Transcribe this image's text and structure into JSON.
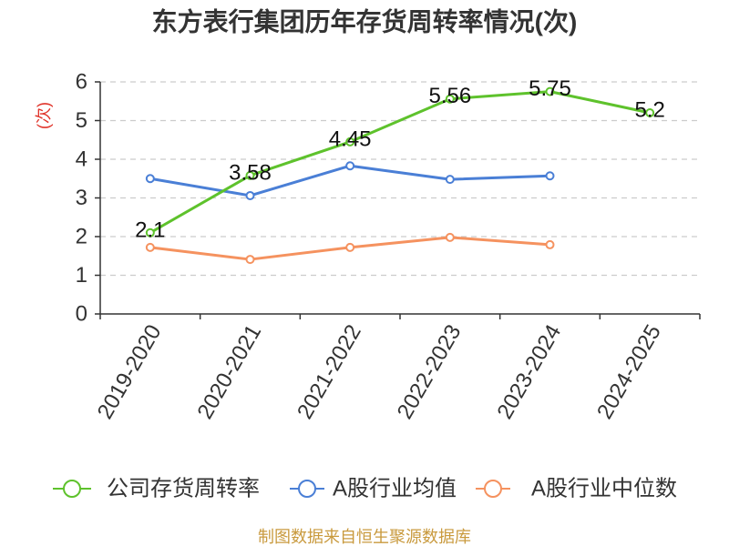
{
  "chart_data": {
    "type": "line",
    "title": "东方表行集团历年存货周转率情况(次)",
    "xlabel": "",
    "ylabel": "(次)",
    "ylim": [
      0,
      6
    ],
    "yticks": [
      0,
      1,
      2,
      3,
      4,
      5,
      6
    ],
    "grid": true,
    "legend_position": "bottom",
    "categories": [
      "2019-2020",
      "2020-2021",
      "2021-2022",
      "2022-2023",
      "2023-2024",
      "2024-2025"
    ],
    "series": [
      {
        "name": "公司存货周转率",
        "color": "#5ec22c",
        "data_labels": true,
        "values": [
          2.1,
          3.58,
          4.45,
          5.56,
          5.75,
          5.2
        ]
      },
      {
        "name": "A股行业均值",
        "color": "#4a7fd6",
        "data_labels": false,
        "values": [
          3.5,
          3.06,
          3.83,
          3.48,
          3.57,
          null
        ]
      },
      {
        "name": "A股行业中位数",
        "color": "#f5925f",
        "data_labels": false,
        "values": [
          1.72,
          1.41,
          1.72,
          1.98,
          1.79,
          null
        ]
      }
    ]
  },
  "footer": "制图数据来自恒生聚源数据库",
  "colors": {
    "ylabel": "#e0342a",
    "footer": "#c99a3e",
    "grid": "#cccccc",
    "axis": "#333333"
  }
}
